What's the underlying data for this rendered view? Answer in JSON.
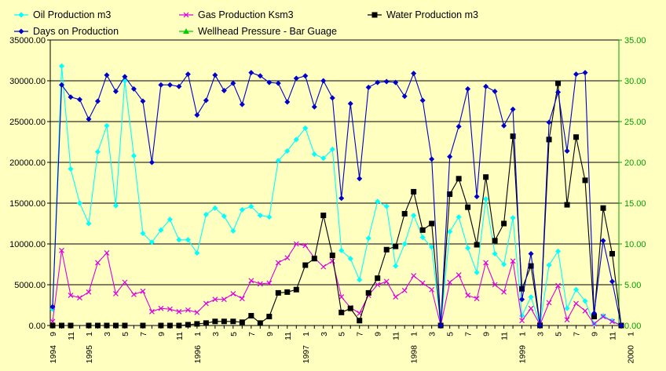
{
  "chart_data": {
    "type": "line",
    "title": "",
    "xlabel": "",
    "ylabel": "",
    "ylim": [
      0,
      35000
    ],
    "y2lim": [
      0,
      35
    ],
    "y_ticks": [
      "0.00",
      "5000.00",
      "10000.00",
      "15000.00",
      "20000.00",
      "25000.00",
      "30000.00",
      "35000.00"
    ],
    "y2_ticks": [
      "0.00",
      "5.00",
      "10.00",
      "15.00",
      "20.00",
      "25.00",
      "30.00",
      "35.00"
    ],
    "grid": "horizontal",
    "legend_position": "top",
    "x_tick_labels": [
      "9",
      "11",
      "1",
      "3",
      "5",
      "7",
      "9",
      "11",
      "1",
      "3",
      "5",
      "7",
      "9",
      "11",
      "1",
      "3",
      "5",
      "7",
      "9",
      "11",
      "1",
      "3",
      "5",
      "7",
      "9",
      "11",
      "1",
      "3",
      "5",
      "7",
      "9",
      "11",
      "1"
    ],
    "x_year_labels": [
      "1994",
      "1995",
      "1996",
      "1997",
      "1998",
      "1999",
      "2000"
    ],
    "x_year_positions": [
      0,
      4,
      16,
      28,
      40,
      52,
      64
    ],
    "series": [
      {
        "name": "Oil Production m3",
        "color": "#00ffff",
        "marker": "diamond",
        "axis": "left",
        "values": [
          2000,
          31800,
          19200,
          15000,
          12500,
          21300,
          24500,
          14700,
          30000,
          20800,
          11300,
          10200,
          11700,
          13000,
          10500,
          10500,
          8900,
          13600,
          14400,
          13400,
          11600,
          14200,
          14600,
          13500,
          13300,
          20200,
          21400,
          22800,
          24200,
          21000,
          20500,
          21600,
          9200,
          8200,
          5600,
          10700,
          15200,
          14600,
          7300,
          10000,
          13500,
          10800,
          9600,
          0,
          11500,
          13300,
          9500,
          6500,
          15500,
          8800,
          7500,
          13200,
          1200,
          3500,
          100,
          7400,
          9100,
          2100,
          4400,
          3000,
          200,
          1200,
          600,
          0
        ]
      },
      {
        "name": "Gas Production Ksm3",
        "color": "#dd00dd",
        "marker": "cross",
        "axis": "left",
        "values": [
          500,
          9200,
          3700,
          3400,
          4100,
          7700,
          8900,
          3900,
          5300,
          3800,
          4200,
          1700,
          2100,
          2000,
          1700,
          1900,
          1600,
          2700,
          3200,
          3200,
          3900,
          3300,
          5500,
          5100,
          5200,
          7700,
          8300,
          10000,
          9800,
          8300,
          7200,
          7900,
          3500,
          2200,
          1500,
          3700,
          5000,
          5400,
          3500,
          4300,
          6100,
          5200,
          4400,
          0,
          5300,
          6200,
          3700,
          3300,
          7700,
          5000,
          4100,
          7900,
          600,
          2100,
          100,
          2800,
          4900,
          700,
          2700,
          1800,
          200,
          1100,
          500,
          0
        ]
      },
      {
        "name": "Water Production m3",
        "color": "#000000",
        "marker": "square",
        "axis": "left",
        "values": [
          0,
          0,
          0,
          null,
          0,
          0,
          0,
          0,
          0,
          null,
          0,
          null,
          0,
          0,
          0,
          100,
          200,
          300,
          500,
          500,
          500,
          400,
          1200,
          300,
          1100,
          4000,
          4100,
          4400,
          7400,
          8200,
          13500,
          8600,
          1600,
          2100,
          600,
          4000,
          5800,
          9300,
          9700,
          13700,
          16400,
          11700,
          12500,
          0,
          16100,
          18000,
          14500,
          9900,
          18200,
          10400,
          12500,
          23200,
          4500,
          7300,
          0,
          22800,
          29700,
          14800,
          23100,
          17800,
          1100,
          14400,
          8800,
          0
        ]
      },
      {
        "name": "Days on Production",
        "color": "#0000cc",
        "marker": "diamond",
        "axis": "right",
        "values": [
          2.3,
          29.5,
          28.0,
          27.7,
          25.3,
          27.5,
          30.7,
          28.7,
          30.5,
          29.0,
          27.5,
          20.0,
          29.5,
          29.5,
          29.3,
          30.8,
          25.8,
          27.6,
          30.7,
          28.8,
          29.7,
          27.1,
          31.0,
          30.6,
          29.8,
          29.7,
          27.4,
          30.3,
          30.6,
          26.8,
          30.0,
          27.9,
          15.6,
          27.2,
          18.0,
          29.2,
          29.8,
          29.9,
          29.8,
          28.1,
          30.9,
          27.6,
          20.4,
          0,
          20.7,
          24.4,
          29.0,
          15.8,
          29.3,
          28.7,
          24.5,
          26.5,
          3.2,
          8.8,
          0,
          24.9,
          28.6,
          21.4,
          30.8,
          31.0,
          1.5,
          10.4,
          5.4,
          0
        ]
      },
      {
        "name": "Wellhead Pressure - Bar Guage",
        "color": "#00d000",
        "marker": "triangle",
        "axis": "right",
        "values": []
      }
    ]
  }
}
